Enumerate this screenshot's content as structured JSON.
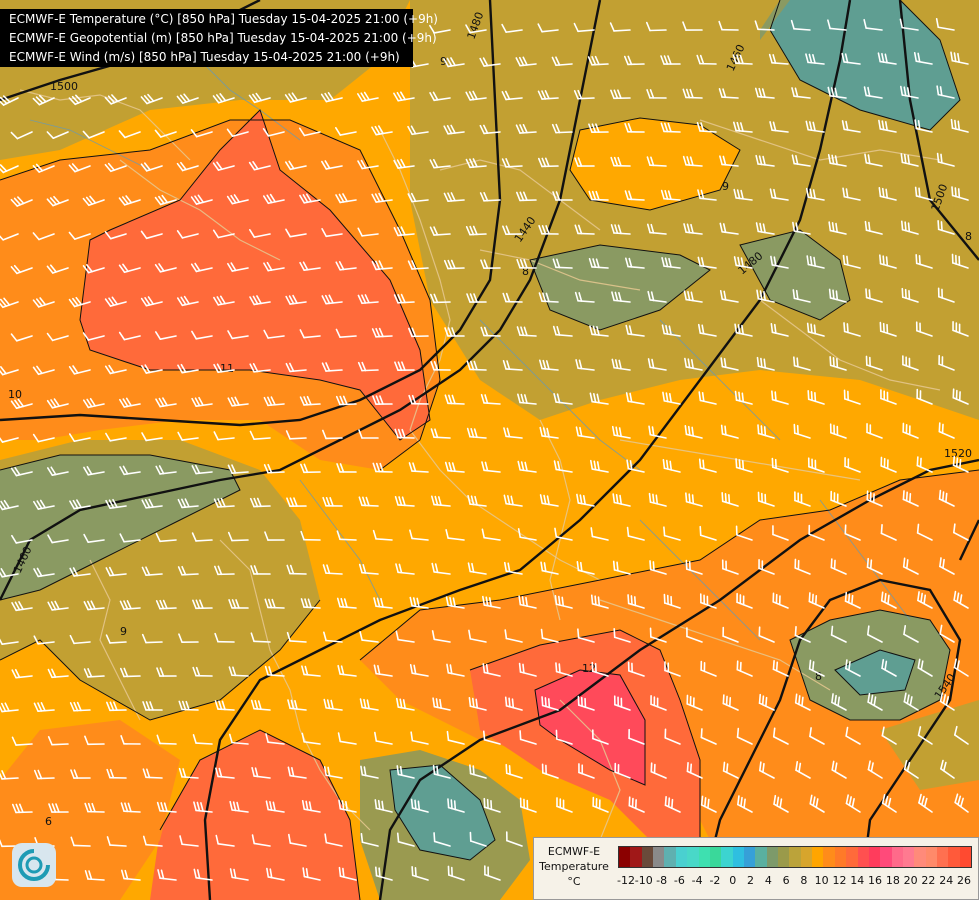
{
  "titles": [
    "ECMWF-E Temperature (°C) [850 hPa] Tuesday 15-04-2025 21:00 (+9h)",
    "ECMWF-E Geopotential (m) [850 hPa] Tuesday 15-04-2025 21:00 (+9h)",
    "ECMWF-E Wind (m/s) [850 hPa] Tuesday 15-04-2025 21:00 (+9h)"
  ],
  "legend": {
    "line1": "ECMWF-E",
    "line2": "Temperature",
    "line3": "°C",
    "tick_labels": [
      "-12",
      "-10",
      "-8",
      "-6",
      "-4",
      "-2",
      "0",
      "2",
      "4",
      "6",
      "8",
      "10",
      "12",
      "14",
      "16",
      "18",
      "20",
      "22",
      "24",
      "26"
    ],
    "colors": [
      "#8b0000",
      "#a01818",
      "#6a4a3a",
      "#8a8a8a",
      "#5fb0b0",
      "#4ad0d0",
      "#49d8c8",
      "#3ee0b0",
      "#3ad89a",
      "#3cd4d0",
      "#2fbfe0",
      "#36a0d8",
      "#5ab0a0",
      "#7d9a6a",
      "#9a9a4a",
      "#bba33a",
      "#d7a52c",
      "#ffa500",
      "#ff8c1a",
      "#ff7a28",
      "#ff6a3a",
      "#ff5050",
      "#ff3c5c",
      "#ff4a7a",
      "#ff6a8a",
      "#ff7a90",
      "#ff8a7a",
      "#ff8a6a",
      "#ff7050",
      "#ff5a3a",
      "#ff4a30"
    ]
  },
  "contour_labels": [
    {
      "text": "1480",
      "kind": "geopotential"
    },
    {
      "text": "1460",
      "kind": "geopotential"
    },
    {
      "text": "1500",
      "kind": "geopotential"
    },
    {
      "text": "1440",
      "kind": "geopotential"
    },
    {
      "text": "1480",
      "kind": "geopotential"
    },
    {
      "text": "1520",
      "kind": "geopotential"
    },
    {
      "text": "1460",
      "kind": "geopotential"
    },
    {
      "text": "1540",
      "kind": "geopotential"
    },
    {
      "text": "1500",
      "kind": "geopotential"
    },
    {
      "text": "10",
      "kind": "temperature"
    },
    {
      "text": "11",
      "kind": "temperature"
    },
    {
      "text": "9",
      "kind": "temperature"
    },
    {
      "text": "9",
      "kind": "temperature"
    },
    {
      "text": "8",
      "kind": "temperature"
    },
    {
      "text": "12",
      "kind": "temperature"
    },
    {
      "text": "8",
      "kind": "temperature"
    },
    {
      "text": "8",
      "kind": "temperature"
    },
    {
      "text": "9",
      "kind": "temperature"
    },
    {
      "text": "6",
      "kind": "temperature"
    }
  ],
  "colors": {
    "olive": "#b99b3c",
    "olive_dark": "#9a9a50",
    "green_gray": "#8a9a62",
    "teal": "#5f9e92",
    "orange": "#ffa800",
    "orange_dark": "#ff8c1a",
    "red_orange": "#ff6a3a",
    "pink_red": "#ff4a5a",
    "coast": "#e6c890",
    "border": "#d8c4a0",
    "barb": "#ffffff",
    "contour": "#111111"
  }
}
